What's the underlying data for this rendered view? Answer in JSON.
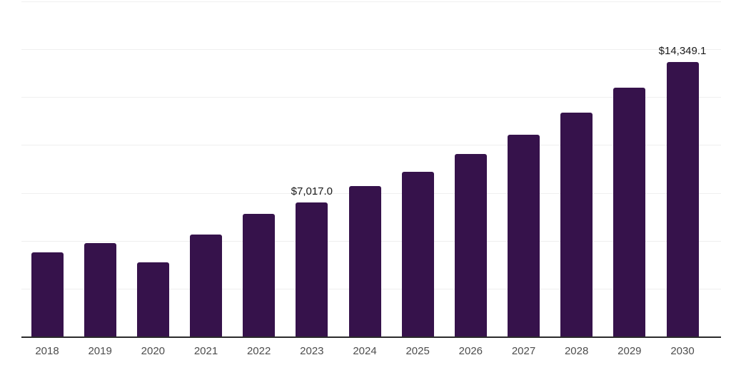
{
  "chart_data": {
    "type": "bar",
    "title": "",
    "xlabel": "",
    "ylabel": "",
    "categories": [
      "2018",
      "2019",
      "2020",
      "2021",
      "2022",
      "2023",
      "2024",
      "2025",
      "2026",
      "2027",
      "2028",
      "2029",
      "2030"
    ],
    "values": [
      4390,
      4880,
      3870,
      5320,
      6400,
      7017.0,
      7860,
      8600,
      9530,
      10540,
      11690,
      12990,
      14349.1
    ],
    "data_labels": [
      "",
      "",
      "",
      "",
      "",
      "$7,017.0",
      "",
      "",
      "",
      "",
      "",
      "",
      "$14,349.1"
    ],
    "ylim": [
      0,
      17500
    ],
    "gridline_interval": 2500,
    "grid": "horizontal-only",
    "legend_position": "none",
    "colors": {
      "bar": "#36124B",
      "axis_line": "#2b2b2b",
      "gridline": "#efefef",
      "value_label_text": "#1a1a1a",
      "tick_label_text": "#4d4d4d",
      "background": "#ffffff"
    }
  }
}
